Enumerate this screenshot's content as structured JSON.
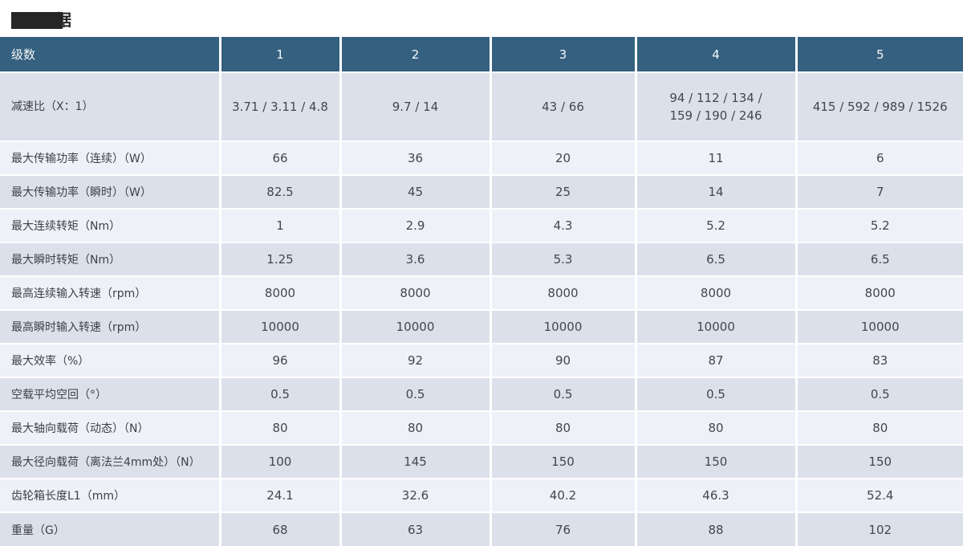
{
  "title": {
    "redacted": true,
    "visible_char": "据"
  },
  "colors": {
    "header_bg": "#35607f",
    "row_dark": "#dce0ea",
    "row_light": "#eef1f8",
    "header_text": "#f4f7f9",
    "cell_text": "#43474c"
  },
  "table": {
    "header": {
      "label": "级数",
      "columns": [
        "1",
        "2",
        "3",
        "4",
        "5"
      ]
    },
    "rows": [
      {
        "label": "减速比（X：1）",
        "values": [
          "3.71 / 3.11 / 4.8",
          "9.7 / 14",
          "43 / 66",
          "94 / 112 / 134 /\n159 / 190 / 246",
          "415 / 592 / 989 / 1526"
        ]
      },
      {
        "label": "最大传输功率（连续）（W）",
        "values": [
          "66",
          "36",
          "20",
          "11",
          "6"
        ]
      },
      {
        "label": "最大传输功率（瞬时）（W）",
        "values": [
          "82.5",
          "45",
          "25",
          "14",
          "7"
        ]
      },
      {
        "label": "最大连续转矩（Nm）",
        "values": [
          "1",
          "2.9",
          "4.3",
          "5.2",
          "5.2"
        ]
      },
      {
        "label": "最大瞬时转矩（Nm）",
        "values": [
          "1.25",
          "3.6",
          "5.3",
          "6.5",
          "6.5"
        ]
      },
      {
        "label": "最高连续输入转速（rpm）",
        "values": [
          "8000",
          "8000",
          "8000",
          "8000",
          "8000"
        ]
      },
      {
        "label": "最高瞬时输入转速（rpm）",
        "values": [
          "10000",
          "10000",
          "10000",
          "10000",
          "10000"
        ]
      },
      {
        "label": "最大效率（%）",
        "values": [
          "96",
          "92",
          "90",
          "87",
          "83"
        ]
      },
      {
        "label": "空载平均空回（°）",
        "values": [
          "0.5",
          "0.5",
          "0.5",
          "0.5",
          "0.5"
        ]
      },
      {
        "label": "最大轴向载荷（动态）（N）",
        "values": [
          "80",
          "80",
          "80",
          "80",
          "80"
        ]
      },
      {
        "label": "最大径向载荷（离法兰4mm处）（N）",
        "values": [
          "100",
          "145",
          "150",
          "150",
          "150"
        ]
      },
      {
        "label": "齿轮箱长度L1（mm）",
        "values": [
          "24.1",
          "32.6",
          "40.2",
          "46.3",
          "52.4"
        ]
      },
      {
        "label": "重量（G）",
        "values": [
          "68",
          "63",
          "76",
          "88",
          "102"
        ]
      }
    ]
  }
}
